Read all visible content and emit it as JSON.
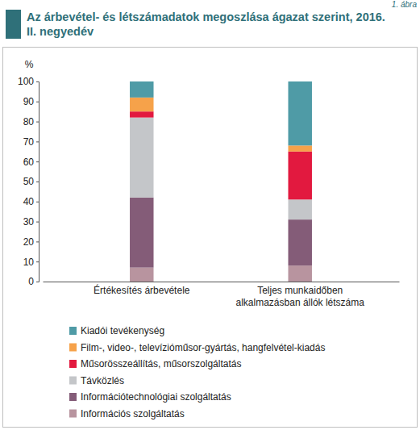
{
  "chart_data": {
    "type": "bar",
    "stacked": true,
    "title": "Az árbevétel- és létszámadatok megoszlása ágazat szerint, 2016. II. negyedév",
    "annotation": "1. ábra",
    "y_label": "%",
    "categories": [
      "Értékesítés árbevétele",
      "Teljes munkaidőben alkalmazásban állók létszáma"
    ],
    "series": [
      {
        "name": "Kiadói tevékenység",
        "color": "#4f9ba6",
        "values": [
          8,
          32
        ]
      },
      {
        "name": "Film-, video-, televízióműsor-gyártás, hangfelvétel-kiadás",
        "color": "#f6a24a",
        "values": [
          7,
          3
        ]
      },
      {
        "name": "Műsorösszeállítás, műsorszolgáltatás",
        "color": "#e2193f",
        "values": [
          3,
          24
        ]
      },
      {
        "name": "Távközlés",
        "color": "#c4c6c9",
        "values": [
          40,
          10
        ]
      },
      {
        "name": "Információtechnológiai szolgáltatás",
        "color": "#845c78",
        "values": [
          35,
          23
        ]
      },
      {
        "name": "Információs szolgáltatás",
        "color": "#b8949f",
        "values": [
          7,
          8
        ]
      }
    ],
    "ylim": [
      0,
      100
    ],
    "yticks": [
      0,
      10,
      20,
      30,
      40,
      50,
      60,
      70,
      80,
      90,
      100
    ],
    "grid": false,
    "legend": "bottom"
  }
}
